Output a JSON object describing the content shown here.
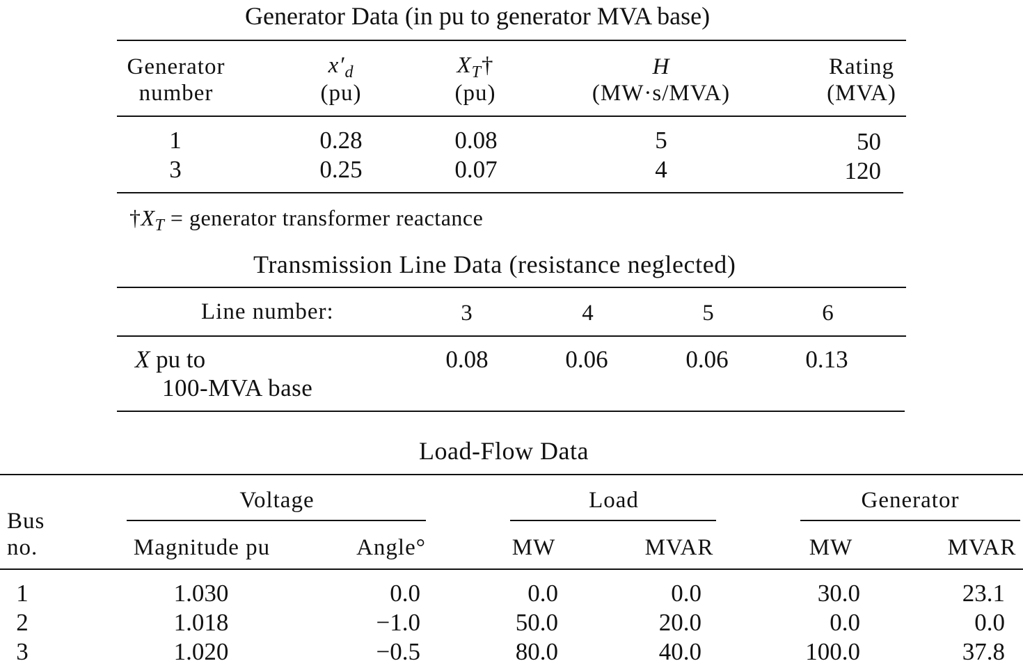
{
  "generator_table": {
    "title": "Generator Data (in pu to generator MVA base)",
    "headers": {
      "number_line1": "Generator",
      "number_line2": "number",
      "xd_symbol": "x′",
      "xd_sub": "d",
      "xd_unit": "(pu)",
      "xt_symbol": "X",
      "xt_sub": "T",
      "xt_mark": "†",
      "xt_unit": "(pu)",
      "h_symbol": "H",
      "h_unit": "(MW·s/MVA)",
      "rating_line1": "Rating",
      "rating_line2": "(MVA)"
    },
    "rows": [
      {
        "number": "1",
        "xd": "0.28",
        "xt": "0.08",
        "h": "5",
        "rating": "50"
      },
      {
        "number": "3",
        "xd": "0.25",
        "xt": "0.07",
        "h": "4",
        "rating": "120"
      }
    ],
    "footnote": {
      "mark": "†",
      "symbol": "X",
      "sub": "T",
      "text": " = generator transformer reactance"
    }
  },
  "line_table": {
    "title": "Transmission Line Data (resistance neglected)",
    "header_label": "Line number:",
    "line_numbers": [
      "3",
      "4",
      "5",
      "6"
    ],
    "row_label_symbol": "X",
    "row_label_line1": " pu to",
    "row_label_line2": "100-MVA base",
    "values": [
      "0.08",
      "0.06",
      "0.06",
      "0.13"
    ]
  },
  "loadflow_table": {
    "title": "Load-Flow Data",
    "headers": {
      "bus_line1": "Bus",
      "bus_line2": "no.",
      "voltage_group": "Voltage",
      "load_group": "Load",
      "generator_group": "Generator",
      "magnitude": "Magnitude pu",
      "angle": "Angle°",
      "load_mw": "MW",
      "load_mvar": "MVAR",
      "gen_mw": "MW",
      "gen_mvar": "MVAR"
    },
    "rows": [
      {
        "bus": "1",
        "magnitude": "1.030",
        "angle": "0.0",
        "load_mw": "0.0",
        "load_mvar": "0.0",
        "gen_mw": "30.0",
        "gen_mvar": "23.1"
      },
      {
        "bus": "2",
        "magnitude": "1.018",
        "angle": "−1.0",
        "load_mw": "50.0",
        "load_mvar": "20.0",
        "gen_mw": "0.0",
        "gen_mvar": "0.0"
      },
      {
        "bus": "3",
        "magnitude": "1.020",
        "angle": "−0.5",
        "load_mw": "80.0",
        "load_mvar": "40.0",
        "gen_mw": "100.0",
        "gen_mvar": "37.8"
      }
    ]
  }
}
